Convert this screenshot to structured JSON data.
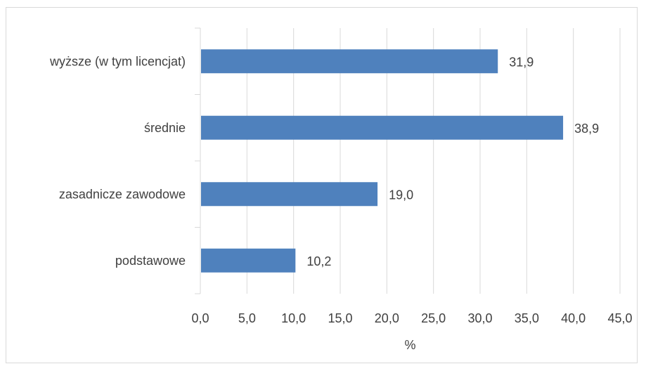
{
  "chart_data": {
    "type": "bar",
    "orientation": "horizontal",
    "categories": [
      "wyższe (w tym licencjat)",
      "średnie",
      "zasadnicze zawodowe",
      "podstawowe"
    ],
    "values": [
      31.9,
      38.9,
      19.0,
      10.2
    ],
    "value_labels": [
      "31,9",
      "38,9",
      "19,0",
      "10,2"
    ],
    "xlabel": "%",
    "xlim": [
      0,
      45
    ],
    "x_ticks": [
      0,
      5,
      10,
      15,
      20,
      25,
      30,
      35,
      40,
      45
    ],
    "x_tick_labels": [
      "0,0",
      "5,0",
      "10,0",
      "15,0",
      "20,0",
      "25,0",
      "30,0",
      "35,0",
      "40,0",
      "45,0"
    ],
    "grid": true,
    "legend": false,
    "bar_color": "#4f81bd",
    "grid_color": "#d9d9d9"
  }
}
